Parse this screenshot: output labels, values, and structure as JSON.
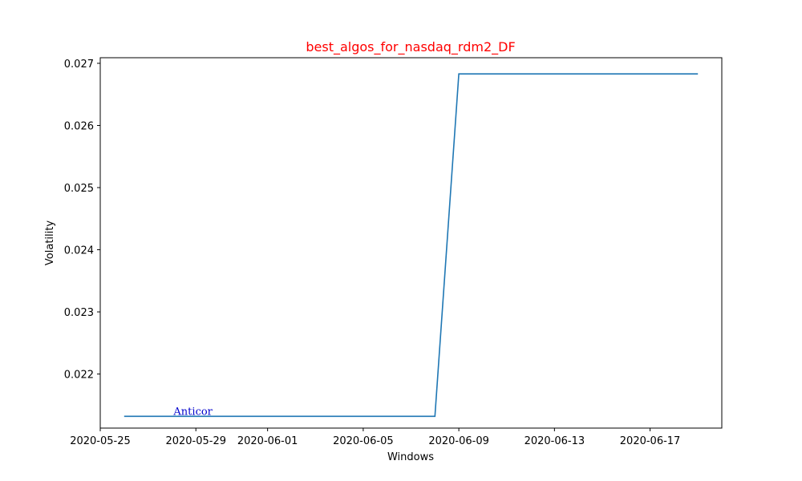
{
  "colors": {
    "title": "#ff0000",
    "series": "#1f77b4",
    "annotation": "#0000cd",
    "axes": "#000000",
    "background": "#ffffff"
  },
  "chart_data": {
    "type": "line",
    "title": "best_algos_for_nasdaq_rdm2_DF",
    "xlabel": "Windows",
    "ylabel": "Volatility",
    "x_type": "date",
    "xlim": [
      "2020-05-25",
      "2020-06-20"
    ],
    "ylim": [
      0.02113,
      0.02709
    ],
    "x_ticks": [
      "2020-05-25",
      "2020-05-29",
      "2020-06-01",
      "2020-06-05",
      "2020-06-09",
      "2020-06-13",
      "2020-06-17"
    ],
    "y_ticks": [
      0.022,
      0.023,
      0.024,
      0.025,
      0.026,
      0.027
    ],
    "grid": false,
    "series": [
      {
        "x": [
          "2020-05-26",
          "2020-06-08",
          "2020-06-09",
          "2020-06-19"
        ],
        "y": [
          0.02132,
          0.02132,
          0.02683,
          0.02683
        ]
      }
    ],
    "annotations": [
      {
        "text": "Anticor",
        "x": "2020-05-28",
        "y": 0.02132
      }
    ]
  }
}
